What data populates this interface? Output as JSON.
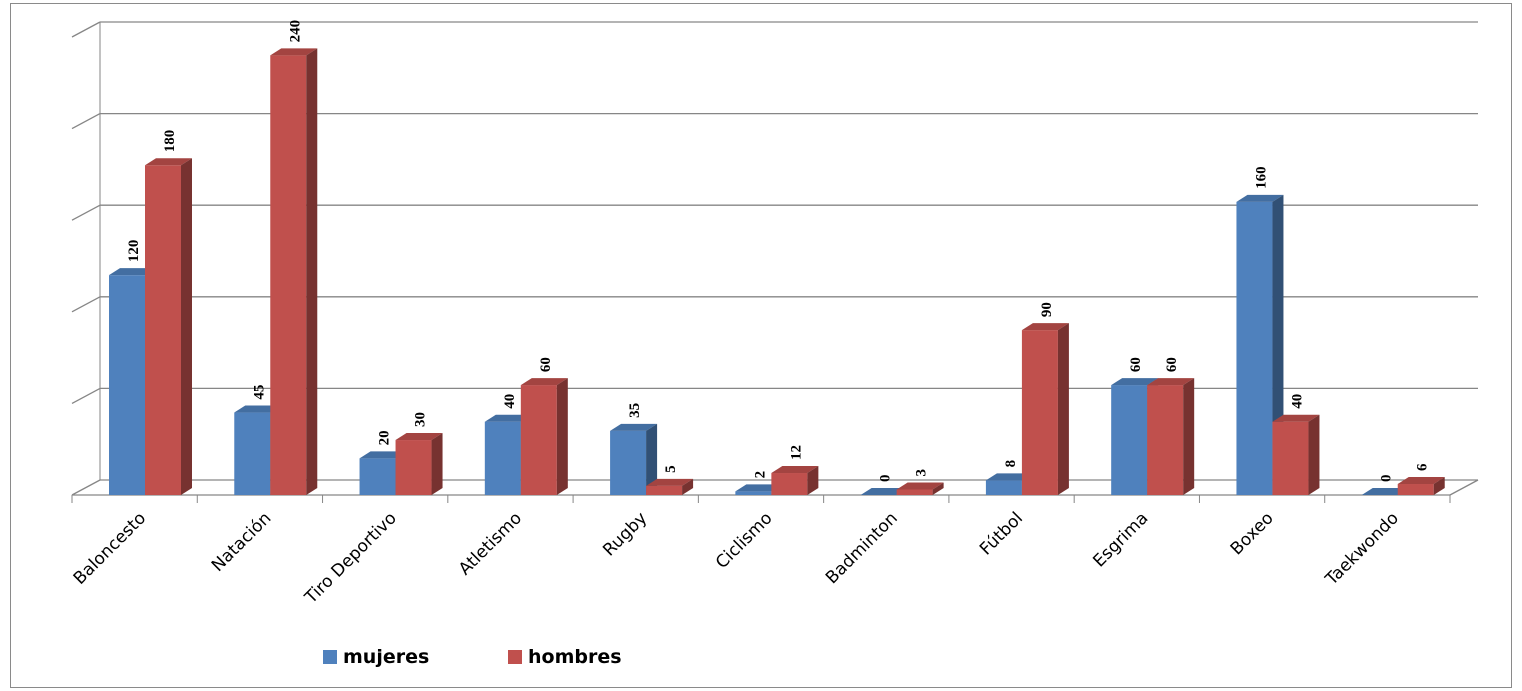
{
  "chart_data": {
    "type": "bar",
    "categories": [
      "Baloncesto",
      "Natación",
      "Tiro Deportivo",
      "Atletismo",
      "Rugby",
      "Ciclismo",
      "Badminton",
      "Fútbol",
      "Esgrima",
      "Boxeo",
      "Taekwondo"
    ],
    "series": [
      {
        "name": "mujeres",
        "color": "#4F81BD",
        "values": [
          120,
          45,
          20,
          40,
          35,
          2,
          0,
          8,
          60,
          160,
          0
        ]
      },
      {
        "name": "hombres",
        "color": "#C0504D",
        "values": [
          180,
          240,
          30,
          60,
          5,
          12,
          3,
          90,
          60,
          40,
          6
        ]
      }
    ],
    "title": "",
    "xlabel": "",
    "ylabel": "",
    "ylim": [
      0,
      250
    ],
    "grid": true,
    "legend_position": "bottom-left",
    "style": "3d-clustered-column"
  }
}
